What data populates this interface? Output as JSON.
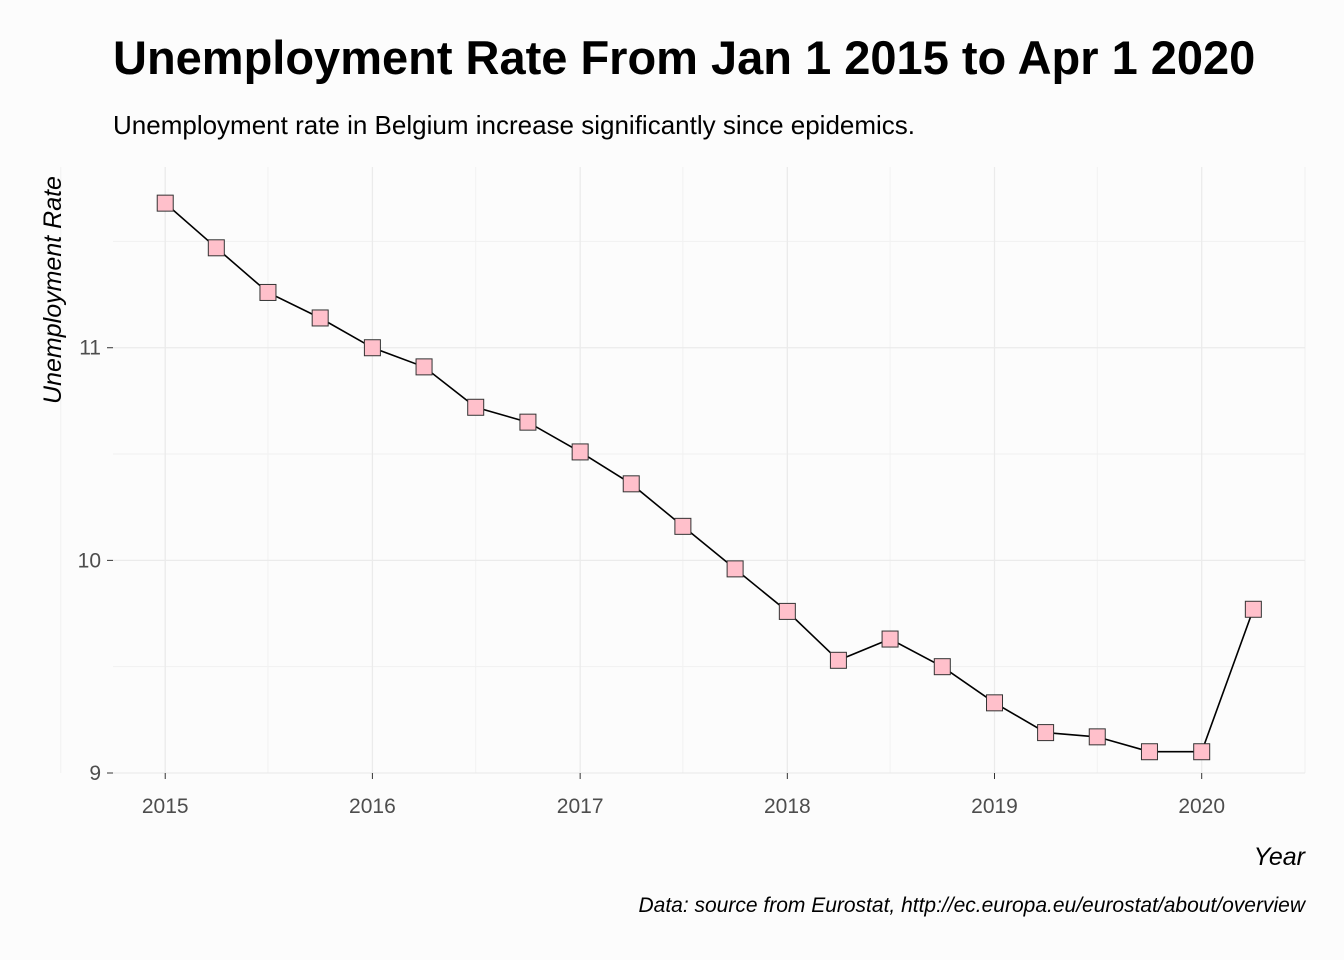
{
  "chart_data": {
    "type": "line",
    "title": "Unemployment Rate From Jan 1 2015 to Apr 1 2020",
    "subtitle": "Unemployment rate in Belgium increase significantly since epidemics.",
    "caption": "Data: source from Eurostat, http://ec.europa.eu/eurostat/about/overview",
    "xlabel": "Year",
    "ylabel": "Unemployment Rate",
    "x_ticks": [
      "2015",
      "2016",
      "2017",
      "2018",
      "2019",
      "2020"
    ],
    "y_ticks": [
      "9",
      "10",
      "11"
    ],
    "xlim": [
      "2014-10-01",
      "2020-07-01"
    ],
    "ylim": [
      9.0,
      11.85
    ],
    "grid": true,
    "legend": "none",
    "marker": "square",
    "colors": {
      "marker_fill": "#ffc0cb",
      "marker_stroke": "#333333",
      "line": "#000000",
      "grid": "#ebebeb",
      "background": "#fcfcfc"
    },
    "series": [
      {
        "x": [
          "2015-01-01",
          "2015-04-01",
          "2015-07-01",
          "2015-10-01",
          "2016-01-01",
          "2016-04-01",
          "2016-07-01",
          "2016-10-01",
          "2017-01-01",
          "2017-04-01",
          "2017-07-01",
          "2017-10-01",
          "2018-01-01",
          "2018-04-01",
          "2018-07-01",
          "2018-10-01",
          "2019-01-01",
          "2019-04-01",
          "2019-07-01",
          "2019-10-01",
          "2020-01-01",
          "2020-04-01"
        ],
        "y": [
          11.68,
          11.47,
          11.26,
          11.14,
          11.0,
          10.91,
          10.72,
          10.65,
          10.51,
          10.36,
          10.16,
          9.96,
          9.76,
          9.53,
          9.63,
          9.5,
          9.33,
          9.19,
          9.17,
          9.1,
          9.1,
          9.77
        ]
      }
    ]
  }
}
